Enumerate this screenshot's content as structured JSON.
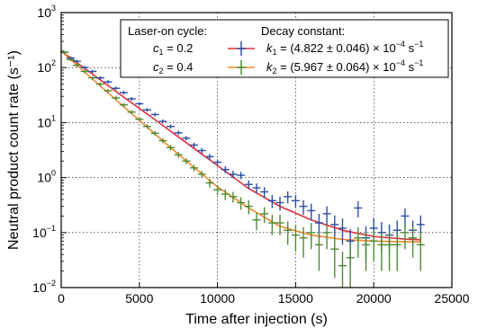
{
  "chart_data": {
    "type": "scatter",
    "xlabel": "Time after injection (s)",
    "ylabel": "Neutral product count rate (s⁻¹)",
    "xlim": [
      0,
      25000
    ],
    "ylim": [
      0.01,
      1000
    ],
    "yscale": "log",
    "grid": true,
    "legend_position": "top-right",
    "x_ticks": [
      "0",
      "5000",
      "10000",
      "15000",
      "20000",
      "25000"
    ],
    "y_ticks": [
      "10",
      "10",
      "10",
      "10",
      "10",
      "10"
    ],
    "y_tick_exponents": [
      "−2",
      "−1",
      "0",
      "1",
      "2",
      "3"
    ],
    "legend": {
      "header_left": "Laser-on cycle:",
      "header_right": "Decay constant:",
      "entries": [
        {
          "cycle_var": "c",
          "cycle_sub": "1",
          "cycle_value": " = 0.2",
          "k_var": "k",
          "k_sub": "1",
          "k_value": " = (4.822 ± 0.046) × 10",
          "k_exp": "−4",
          "k_unit": " s",
          "k_unit_exp": "−1"
        },
        {
          "cycle_var": "c",
          "cycle_sub": "2",
          "cycle_value": " = 0.4",
          "k_var": "k",
          "k_sub": "2",
          "k_value": " = (5.967 ± 0.064) × 10",
          "k_exp": "−4",
          "k_unit": " s",
          "k_unit_exp": "−1"
        }
      ]
    },
    "series": [
      {
        "color": "#2c4da3",
        "fit_color": "#e0303a",
        "x": [
          200,
          600,
          1000,
          1500,
          2000,
          2500,
          3000,
          3500,
          4000,
          4500,
          5000,
          5500,
          6000,
          6500,
          7000,
          7500,
          8000,
          8500,
          9000,
          9500,
          10000,
          10500,
          11000,
          11500,
          12000,
          12500,
          13000,
          13500,
          14000,
          14500,
          15000,
          15500,
          16000,
          16500,
          17000,
          17500,
          18000,
          18500,
          19000,
          19500,
          20000,
          20500,
          21000,
          21500,
          22000,
          22500,
          23000
        ],
        "y": [
          190,
          150,
          130,
          100,
          85,
          65,
          55,
          42,
          35,
          27,
          22,
          17,
          14,
          10.5,
          8.5,
          6.5,
          5.2,
          3.9,
          3.1,
          2.4,
          1.9,
          1.4,
          1.15,
          1.1,
          0.75,
          0.65,
          0.55,
          0.38,
          0.35,
          0.45,
          0.38,
          0.3,
          0.25,
          0.15,
          0.22,
          0.14,
          0.12,
          0.07,
          0.28,
          0.08,
          0.12,
          0.1,
          0.09,
          0.11,
          0.2,
          0.11,
          0.14
        ],
        "yerr_lower": [
          12,
          10,
          9,
          7,
          6,
          4.5,
          4,
          3,
          2.5,
          2,
          1.6,
          1.3,
          1.1,
          0.9,
          0.75,
          0.6,
          0.5,
          0.4,
          0.35,
          0.3,
          0.25,
          0.2,
          0.18,
          0.17,
          0.14,
          0.13,
          0.12,
          0.1,
          0.1,
          0.11,
          0.1,
          0.09,
          0.085,
          0.07,
          0.08,
          0.065,
          0.06,
          0.045,
          0.09,
          0.05,
          0.06,
          0.055,
          0.05,
          0.055,
          0.075,
          0.055,
          0.065
        ],
        "yerr_upper": [
          12,
          10,
          9,
          7,
          6,
          4.5,
          4,
          3,
          2.5,
          2,
          1.6,
          1.3,
          1.1,
          0.9,
          0.75,
          0.6,
          0.5,
          0.4,
          0.35,
          0.3,
          0.25,
          0.2,
          0.18,
          0.17,
          0.14,
          0.13,
          0.12,
          0.1,
          0.1,
          0.11,
          0.1,
          0.09,
          0.085,
          0.07,
          0.08,
          0.065,
          0.06,
          0.045,
          0.09,
          0.05,
          0.06,
          0.055,
          0.05,
          0.055,
          0.075,
          0.055,
          0.065
        ],
        "fit_x": [
          0,
          2000,
          4000,
          6000,
          8000,
          10000,
          12000,
          14000,
          16000,
          18000,
          20000,
          22000,
          23000
        ],
        "fit_y": [
          200,
          76,
          29,
          11.3,
          4.3,
          1.65,
          0.63,
          0.3,
          0.17,
          0.11,
          0.085,
          0.076,
          0.074
        ]
      },
      {
        "color": "#4f8a35",
        "fit_color": "#f08a2c",
        "x": [
          200,
          600,
          1000,
          1500,
          2000,
          2500,
          3000,
          3500,
          4000,
          4500,
          5000,
          5500,
          6000,
          6500,
          7000,
          7500,
          8000,
          8500,
          9000,
          9500,
          10000,
          10500,
          11000,
          11500,
          12000,
          12500,
          13000,
          13500,
          14000,
          14500,
          15000,
          15500,
          16000,
          16500,
          17000,
          17500,
          18000,
          18500,
          19000,
          19500,
          20000,
          20500,
          21000,
          21500,
          22000,
          22500,
          23000
        ],
        "y": [
          190,
          140,
          110,
          85,
          65,
          50,
          38,
          28,
          21,
          15.5,
          11.5,
          8.5,
          6.4,
          4.7,
          3.5,
          2.6,
          2.0,
          1.5,
          1.15,
          0.8,
          0.6,
          0.5,
          0.45,
          0.35,
          0.3,
          0.17,
          0.22,
          0.15,
          0.15,
          0.11,
          0.09,
          0.08,
          0.1,
          0.06,
          0.1,
          0.05,
          0.025,
          0.035,
          0.08,
          0.06,
          0.07,
          0.06,
          0.06,
          0.06,
          0.1,
          0.08,
          0.06
        ],
        "yerr_lower": [
          12,
          9,
          8,
          6,
          5,
          4,
          3,
          2.2,
          1.7,
          1.3,
          1.0,
          0.8,
          0.6,
          0.5,
          0.4,
          0.32,
          0.26,
          0.2,
          0.17,
          0.14,
          0.12,
          0.11,
          0.1,
          0.09,
          0.085,
          0.06,
          0.07,
          0.06,
          0.06,
          0.05,
          0.045,
          0.045,
          0.05,
          0.04,
          0.05,
          0.035,
          0.02,
          0.025,
          0.045,
          0.04,
          0.04,
          0.04,
          0.04,
          0.04,
          0.05,
          0.045,
          0.04
        ],
        "yerr_upper": [
          12,
          9,
          8,
          6,
          5,
          4,
          3,
          2.2,
          1.7,
          1.3,
          1.0,
          0.8,
          0.6,
          0.5,
          0.4,
          0.32,
          0.26,
          0.2,
          0.17,
          0.14,
          0.12,
          0.11,
          0.1,
          0.09,
          0.085,
          0.06,
          0.07,
          0.06,
          0.06,
          0.05,
          0.045,
          0.045,
          0.05,
          0.04,
          0.05,
          0.035,
          0.02,
          0.025,
          0.045,
          0.04,
          0.04,
          0.04,
          0.04,
          0.04,
          0.05,
          0.045,
          0.04
        ],
        "fit_x": [
          0,
          2000,
          4000,
          6000,
          8000,
          10000,
          12000,
          14000,
          16000,
          18000,
          20000,
          22000,
          23000
        ],
        "fit_y": [
          200,
          62,
          19.5,
          6.2,
          2.0,
          0.68,
          0.28,
          0.13,
          0.09,
          0.075,
          0.07,
          0.068,
          0.068
        ]
      }
    ]
  }
}
